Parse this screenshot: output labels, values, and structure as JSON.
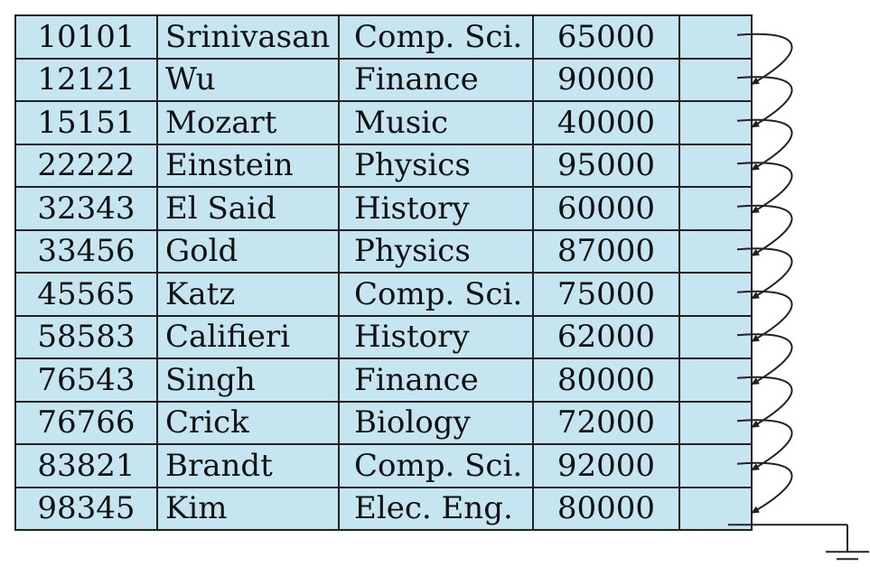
{
  "records": [
    {
      "id": "10101",
      "name": "Srinivasan",
      "dept": "Comp. Sci.",
      "salary": "65000"
    },
    {
      "id": "12121",
      "name": "Wu",
      "dept": "Finance",
      "salary": "90000"
    },
    {
      "id": "15151",
      "name": "Mozart",
      "dept": "Music",
      "salary": "40000"
    },
    {
      "id": "22222",
      "name": "Einstein",
      "dept": "Physics",
      "salary": "95000"
    },
    {
      "id": "32343",
      "name": "El Said",
      "dept": "History",
      "salary": "60000"
    },
    {
      "id": "33456",
      "name": "Gold",
      "dept": "Physics",
      "salary": "87000"
    },
    {
      "id": "45565",
      "name": "Katz",
      "dept": "Comp. Sci.",
      "salary": "75000"
    },
    {
      "id": "58583",
      "name": "Califieri",
      "dept": "History",
      "salary": "62000"
    },
    {
      "id": "76543",
      "name": "Singh",
      "dept": "Finance",
      "salary": "80000"
    },
    {
      "id": "76766",
      "name": "Crick",
      "dept": "Biology",
      "salary": "72000"
    },
    {
      "id": "83821",
      "name": "Brandt",
      "dept": "Comp. Sci.",
      "salary": "92000"
    },
    {
      "id": "98345",
      "name": "Kim",
      "dept": "Elec. Eng.",
      "salary": "80000"
    }
  ],
  "colors": {
    "cell_fill": "#c5e6f1",
    "border": "#222222",
    "text": "#111111",
    "arrow": "#222222"
  },
  "pointer_chain": {
    "links": "each record points to the next record",
    "last": "null-ground"
  }
}
